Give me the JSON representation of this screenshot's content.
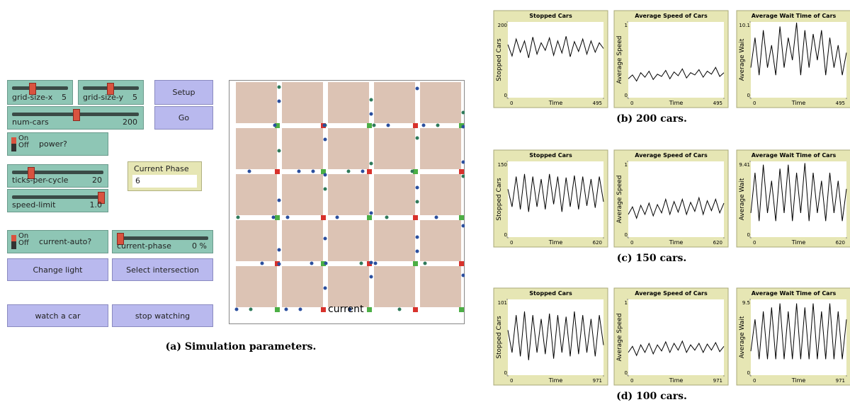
{
  "interface": {
    "sliders": [
      {
        "label": "grid-size-x",
        "value": "5"
      },
      {
        "label": "grid-size-y",
        "value": "5"
      },
      {
        "label": "num-cars",
        "value": "200"
      },
      {
        "label": "ticks-per-cycle",
        "value": "20"
      },
      {
        "label": "speed-limit",
        "value": "1.0"
      },
      {
        "label": "current-phase",
        "value": "0 %"
      }
    ],
    "switches": [
      {
        "on": "On",
        "off": "Off",
        "label": "power?"
      },
      {
        "on": "On",
        "off": "Off",
        "label": "current-auto?"
      }
    ],
    "buttons": [
      "Setup",
      "Go",
      "Change light",
      "Select intersection",
      "watch a car",
      "stop watching"
    ],
    "monitor": {
      "label": "Current Phase",
      "value": "6"
    },
    "view_label": "current",
    "caption": "(a) Simulation parameters."
  },
  "plot_captions": [
    "(b) 200 cars.",
    "(c) 150 cars.",
    "(d) 100 cars."
  ],
  "chart_data": [
    {
      "type": "line",
      "title": "Stopped Cars",
      "ylabel": "Stopped Cars",
      "xlabel": "Time",
      "xlim": [
        0,
        495
      ],
      "xticks": [
        0,
        495
      ],
      "ylim": [
        0,
        200
      ],
      "yticks": [
        0,
        200
      ],
      "color": "#000000",
      "values": [
        140,
        110,
        155,
        120,
        150,
        105,
        160,
        115,
        145,
        125,
        158,
        112,
        150,
        118,
        162,
        108,
        148,
        122,
        155,
        115,
        150,
        120,
        145,
        130
      ]
    },
    {
      "type": "line",
      "title": "Average Speed of Cars",
      "ylabel": "Average Speed",
      "xlabel": "Time",
      "xlim": [
        0,
        495
      ],
      "xticks": [
        0,
        495
      ],
      "ylim": [
        0,
        1
      ],
      "yticks": [
        0,
        1
      ],
      "color": "#000000",
      "values": [
        0.25,
        0.3,
        0.22,
        0.33,
        0.27,
        0.35,
        0.24,
        0.31,
        0.28,
        0.36,
        0.25,
        0.34,
        0.29,
        0.38,
        0.26,
        0.33,
        0.3,
        0.37,
        0.27,
        0.35,
        0.31,
        0.4,
        0.28,
        0.33
      ]
    },
    {
      "type": "line",
      "title": "Average Wait Time of Cars",
      "ylabel": "Average Wait",
      "xlabel": "Time",
      "xlim": [
        0,
        495
      ],
      "xticks": [
        0,
        495
      ],
      "ylim": [
        0,
        10.1
      ],
      "yticks": [
        0,
        10.1
      ],
      "color": "#000000",
      "values": [
        4,
        8,
        3,
        9,
        4,
        7,
        3,
        9.5,
        4,
        8,
        5,
        10,
        3,
        9,
        4,
        8.5,
        5,
        9,
        3,
        8,
        4,
        7,
        3,
        6
      ]
    },
    {
      "type": "line",
      "title": "Stopped Cars",
      "ylabel": "Stopped Cars",
      "xlabel": "Time",
      "xlim": [
        0,
        620
      ],
      "xticks": [
        0,
        620
      ],
      "ylim": [
        0,
        150
      ],
      "yticks": [
        0,
        150
      ],
      "color": "#000000",
      "values": [
        95,
        60,
        120,
        55,
        125,
        50,
        120,
        60,
        115,
        55,
        125,
        65,
        120,
        50,
        118,
        60,
        122,
        55,
        120,
        62,
        115,
        58,
        120,
        70
      ]
    },
    {
      "type": "line",
      "title": "Average Speed of Cars",
      "ylabel": "Average Speed",
      "xlabel": "Time",
      "xlim": [
        0,
        620
      ],
      "xticks": [
        0,
        620
      ],
      "ylim": [
        0,
        1
      ],
      "yticks": [
        0,
        1
      ],
      "color": "#000000",
      "values": [
        0.3,
        0.4,
        0.25,
        0.42,
        0.3,
        0.45,
        0.28,
        0.43,
        0.32,
        0.5,
        0.3,
        0.47,
        0.33,
        0.5,
        0.3,
        0.46,
        0.34,
        0.52,
        0.3,
        0.48,
        0.35,
        0.5,
        0.32,
        0.45
      ]
    },
    {
      "type": "line",
      "title": "Average Wait Time of Cars",
      "ylabel": "Average Wait",
      "xlabel": "Time",
      "xlim": [
        0,
        620
      ],
      "xticks": [
        0,
        620
      ],
      "ylim": [
        0,
        9.41
      ],
      "yticks": [
        0,
        9.41
      ],
      "color": "#000000",
      "values": [
        3,
        8,
        2,
        9,
        3,
        7,
        2,
        8.5,
        3,
        9,
        2,
        8,
        3,
        9.2,
        2,
        8,
        3,
        7,
        2,
        8,
        3,
        7,
        2,
        6
      ]
    },
    {
      "type": "line",
      "title": "Stopped Cars",
      "ylabel": "Stopped Cars",
      "xlabel": "Time",
      "xlim": [
        0,
        971
      ],
      "xticks": [
        0,
        971
      ],
      "ylim": [
        0,
        101
      ],
      "yticks": [
        0,
        101
      ],
      "color": "#000000",
      "values": [
        60,
        30,
        80,
        25,
        85,
        20,
        80,
        30,
        75,
        28,
        82,
        22,
        80,
        30,
        78,
        25,
        85,
        28,
        80,
        30,
        75,
        25,
        80,
        40
      ]
    },
    {
      "type": "line",
      "title": "Average Speed of Cars",
      "ylabel": "Average Speed",
      "xlabel": "Time",
      "xlim": [
        0,
        971
      ],
      "xticks": [
        0,
        971
      ],
      "ylim": [
        0,
        1
      ],
      "yticks": [
        0,
        1
      ],
      "color": "#000000",
      "values": [
        0.3,
        0.38,
        0.26,
        0.4,
        0.3,
        0.42,
        0.28,
        0.4,
        0.32,
        0.44,
        0.3,
        0.42,
        0.33,
        0.45,
        0.3,
        0.4,
        0.33,
        0.42,
        0.3,
        0.41,
        0.33,
        0.43,
        0.31,
        0.38
      ]
    },
    {
      "type": "line",
      "title": "Average Wait Time of Cars",
      "ylabel": "Average Wait",
      "xlabel": "Time",
      "xlim": [
        0,
        971
      ],
      "xticks": [
        0,
        971
      ],
      "ylim": [
        0,
        9.5
      ],
      "yticks": [
        0,
        9.5
      ],
      "color": "#000000",
      "values": [
        3,
        7,
        2,
        8,
        2,
        8.5,
        2,
        9,
        2,
        8,
        2,
        9,
        2,
        8.5,
        2,
        9,
        2,
        8,
        2,
        9,
        2,
        8,
        2,
        7
      ]
    }
  ]
}
